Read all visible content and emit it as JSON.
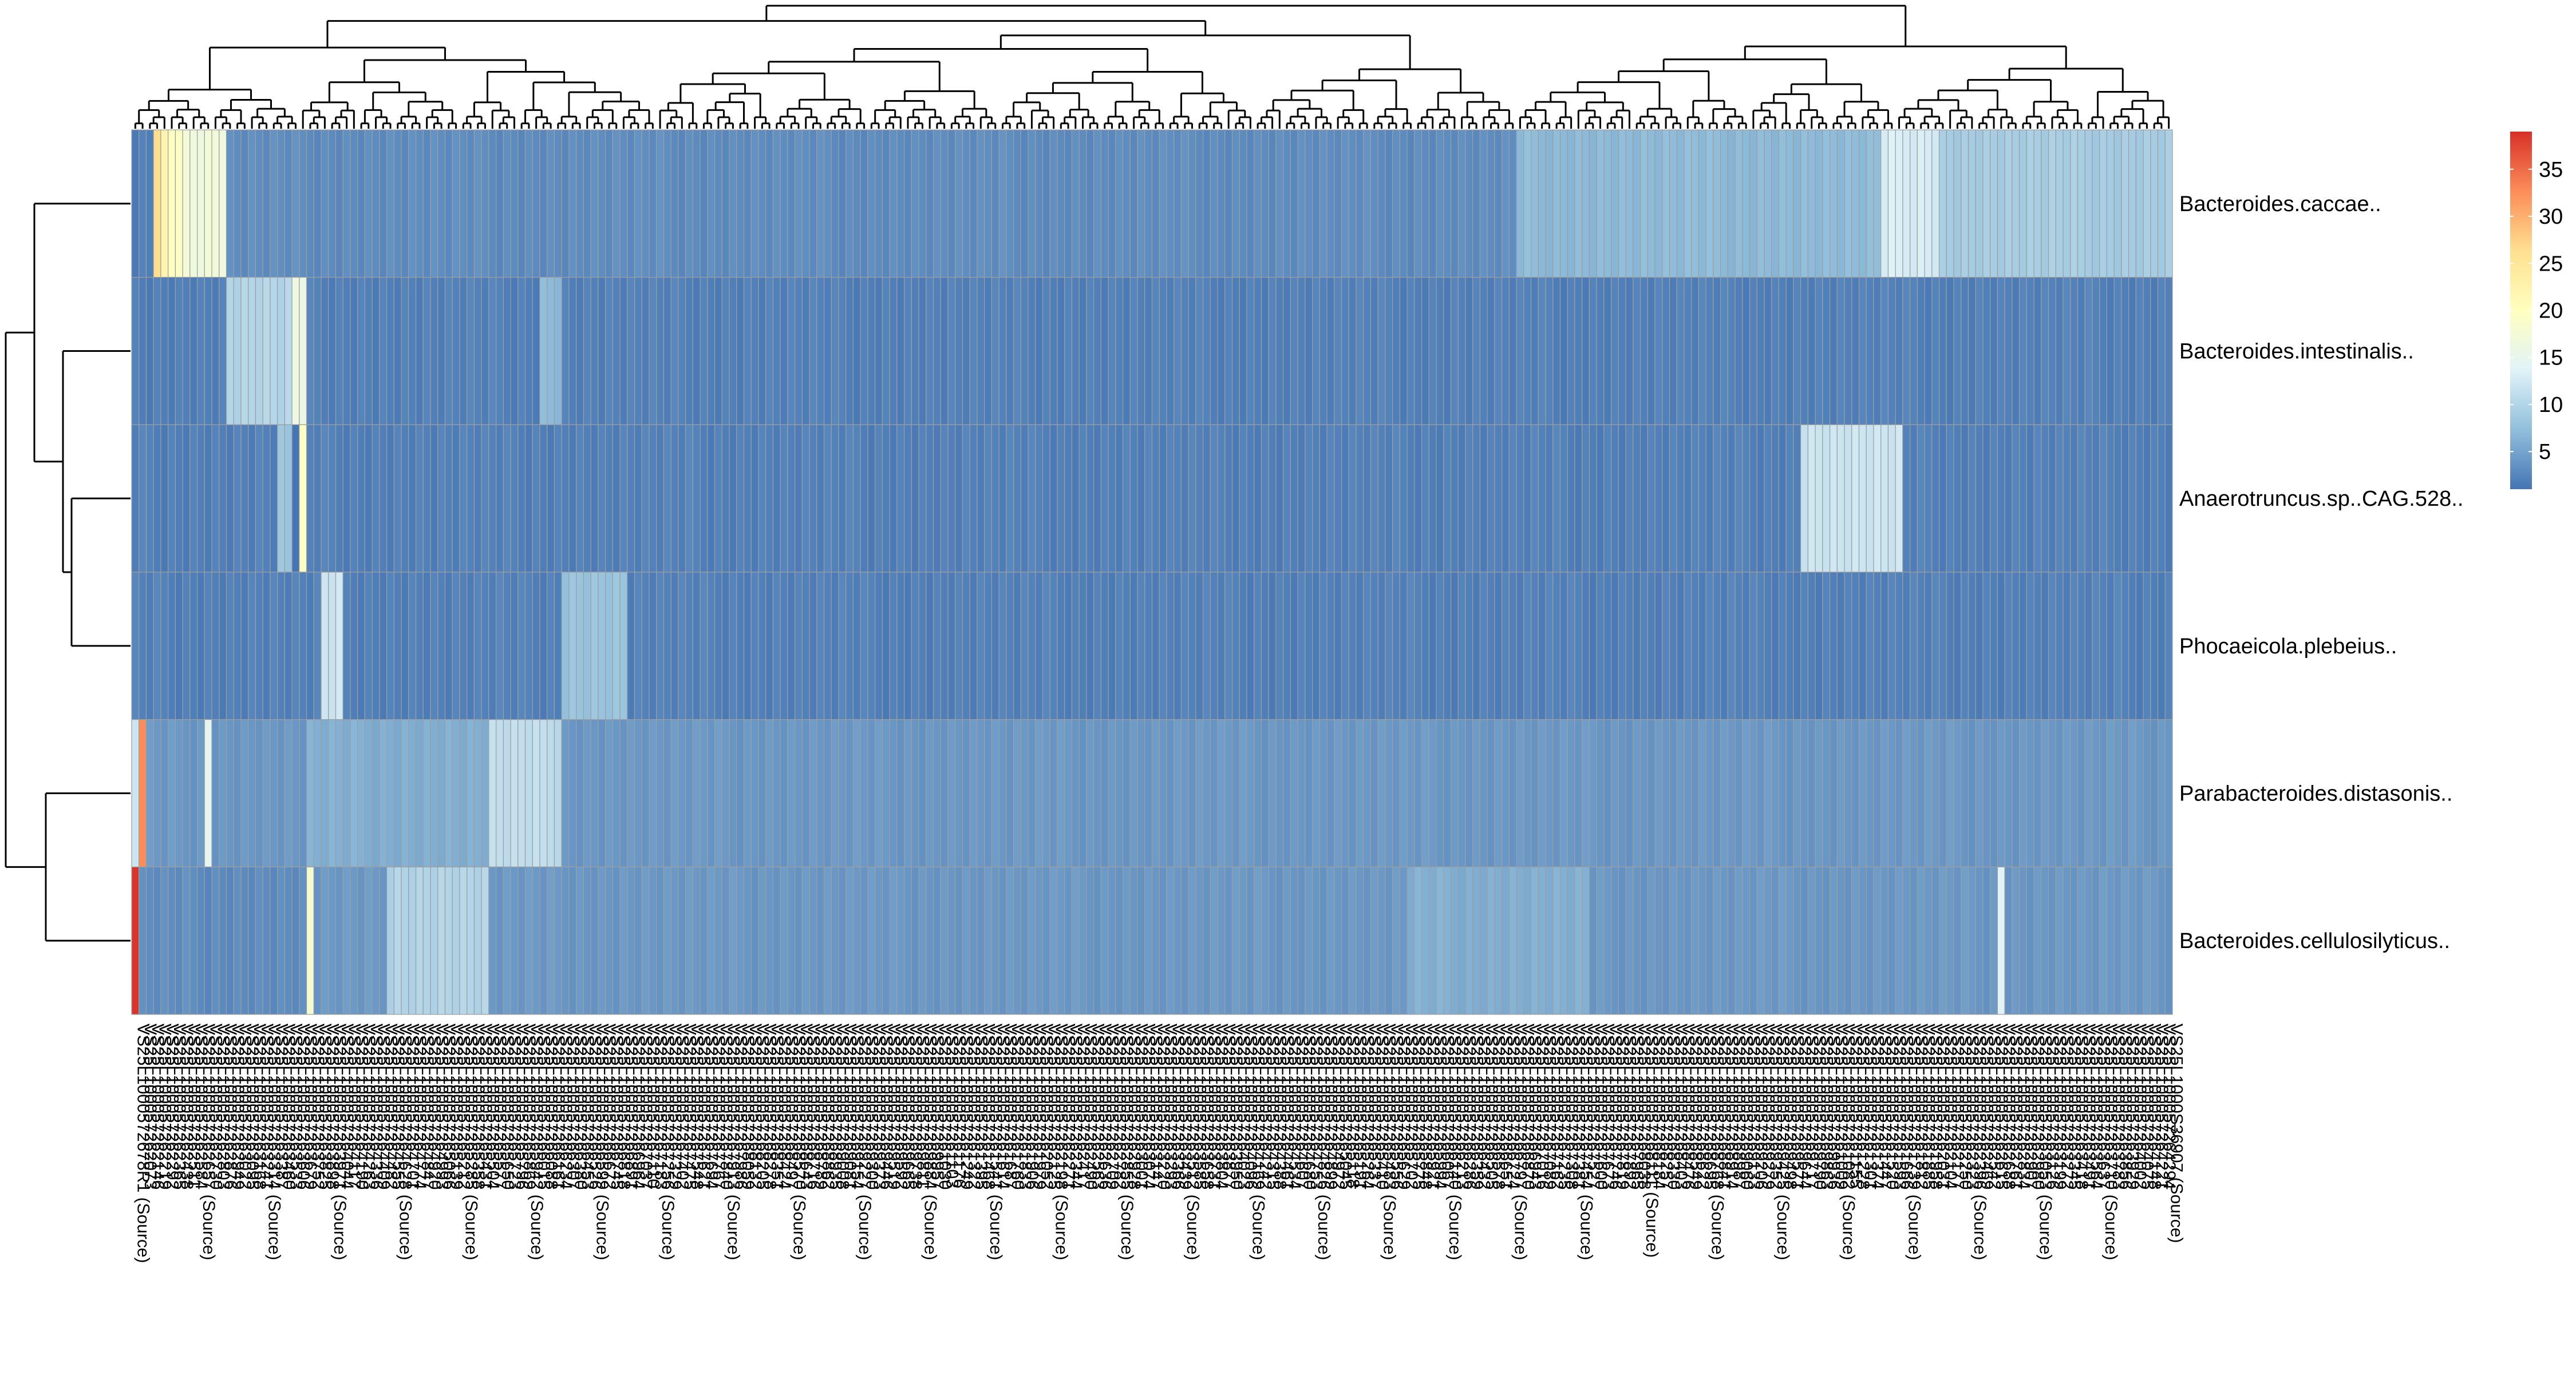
{
  "chart_data": {
    "type": "heatmap",
    "rows": [
      "Bacteroides.caccae..",
      "Bacteroides.intestinalis..",
      "Anaerotruncus.sp..CAG.528..",
      "Phocaeicola.plebeius..",
      "Parabacteroides.distasonis..",
      "Bacteroides.cellulosilyticus.."
    ],
    "n_columns": 280,
    "column_label_first": "VS25L1000572678R1 (Source)",
    "column_label_last": "VS25L1000S36907 (Source)",
    "column_label_fragment": "VS25L10005726",
    "column_label_suffix": "(Source)",
    "row_dendrogram": "((Bacteroides.caccae.., (Bacteroides.intestinalis.., (Anaerotruncus.sp..CAG.528.., Phocaeicola.plebeius..))), (Parabacteroides.distasonis.., Bacteroides.cellulosilyticus..))",
    "column_dendrogram": "hierarchical clustering of all 280 columns",
    "color_scale": {
      "min": 1,
      "max": 39,
      "ticks": [
        5,
        10,
        15,
        20,
        25,
        30,
        35
      ],
      "colors": [
        "#4575b4",
        "#91bfdb",
        "#e0f3f8",
        "#ffffbf",
        "#fee090",
        "#fc8d59",
        "#d73027"
      ]
    },
    "cell_border_color": "#9e9e9e",
    "values_by_column_range": [
      {
        "row": "Bacteroides.caccae..",
        "columns": [
          0,
          2
        ],
        "value": 2
      },
      {
        "row": "Bacteroides.caccae..",
        "columns": [
          3,
          3
        ],
        "value": 27
      },
      {
        "row": "Bacteroides.caccae..",
        "columns": [
          4,
          4
        ],
        "value": 22
      },
      {
        "row": "Bacteroides.caccae..",
        "columns": [
          5,
          6
        ],
        "value": 20
      },
      {
        "row": "Bacteroides.caccae..",
        "columns": [
          7,
          12
        ],
        "value": 17
      },
      {
        "row": "Bacteroides.caccae..",
        "columns": [
          13,
          189
        ],
        "value": 3
      },
      {
        "row": "Bacteroides.caccae..",
        "columns": [
          190,
          239
        ],
        "value": 7
      },
      {
        "row": "Bacteroides.caccae..",
        "columns": [
          240,
          247
        ],
        "value": 13
      },
      {
        "row": "Bacteroides.caccae..",
        "columns": [
          248,
          279
        ],
        "value": 9
      },
      {
        "row": "Bacteroides.intestinalis..",
        "columns": [
          0,
          12
        ],
        "value": 2
      },
      {
        "row": "Bacteroides.intestinalis..",
        "columns": [
          13,
          21
        ],
        "value": 10
      },
      {
        "row": "Bacteroides.intestinalis..",
        "columns": [
          22,
          23
        ],
        "value": 16
      },
      {
        "row": "Bacteroides.intestinalis..",
        "columns": [
          24,
          55
        ],
        "value": 2
      },
      {
        "row": "Bacteroides.intestinalis..",
        "columns": [
          56,
          58
        ],
        "value": 7
      },
      {
        "row": "Bacteroides.intestinalis..",
        "columns": [
          59,
          279
        ],
        "value": 2
      },
      {
        "row": "Anaerotruncus.sp..CAG.528..",
        "columns": [
          0,
          19
        ],
        "value": 2
      },
      {
        "row": "Anaerotruncus.sp..CAG.528..",
        "columns": [
          20,
          21
        ],
        "value": 8
      },
      {
        "row": "Anaerotruncus.sp..CAG.528..",
        "columns": [
          23,
          23
        ],
        "value": 19
      },
      {
        "row": "Anaerotruncus.sp..CAG.528..",
        "columns": [
          24,
          228
        ],
        "value": 2
      },
      {
        "row": "Anaerotruncus.sp..CAG.528..",
        "columns": [
          229,
          242
        ],
        "value": 12
      },
      {
        "row": "Anaerotruncus.sp..CAG.528..",
        "columns": [
          243,
          279
        ],
        "value": 2
      },
      {
        "row": "Phocaeicola.plebeius..",
        "columns": [
          0,
          25
        ],
        "value": 2
      },
      {
        "row": "Phocaeicola.plebeius..",
        "columns": [
          26,
          28
        ],
        "value": 12
      },
      {
        "row": "Phocaeicola.plebeius..",
        "columns": [
          29,
          58
        ],
        "value": 2
      },
      {
        "row": "Phocaeicola.plebeius..",
        "columns": [
          59,
          67
        ],
        "value": 8
      },
      {
        "row": "Phocaeicola.plebeius..",
        "columns": [
          68,
          279
        ],
        "value": 2
      },
      {
        "row": "Parabacteroides.distasonis..",
        "columns": [
          0,
          0
        ],
        "value": 12
      },
      {
        "row": "Parabacteroides.distasonis..",
        "columns": [
          1,
          1
        ],
        "value": 33
      },
      {
        "row": "Parabacteroides.distasonis..",
        "columns": [
          2,
          9
        ],
        "value": 4
      },
      {
        "row": "Parabacteroides.distasonis..",
        "columns": [
          10,
          10
        ],
        "value": 15
      },
      {
        "row": "Parabacteroides.distasonis..",
        "columns": [
          11,
          23
        ],
        "value": 4
      },
      {
        "row": "Parabacteroides.distasonis..",
        "columns": [
          24,
          48
        ],
        "value": 6
      },
      {
        "row": "Parabacteroides.distasonis..",
        "columns": [
          49,
          58
        ],
        "value": 11
      },
      {
        "row": "Parabacteroides.distasonis..",
        "columns": [
          59,
          279
        ],
        "value": 4
      },
      {
        "row": "Bacteroides.cellulosilyticus..",
        "columns": [
          0,
          0
        ],
        "value": 39
      },
      {
        "row": "Bacteroides.cellulosilyticus..",
        "columns": [
          1,
          23
        ],
        "value": 3
      },
      {
        "row": "Bacteroides.cellulosilyticus..",
        "columns": [
          24,
          24
        ],
        "value": 18
      },
      {
        "row": "Bacteroides.cellulosilyticus..",
        "columns": [
          25,
          34
        ],
        "value": 4
      },
      {
        "row": "Bacteroides.cellulosilyticus..",
        "columns": [
          35,
          48
        ],
        "value": 10
      },
      {
        "row": "Bacteroides.cellulosilyticus..",
        "columns": [
          49,
          174
        ],
        "value": 4
      },
      {
        "row": "Bacteroides.cellulosilyticus..",
        "columns": [
          175,
          199
        ],
        "value": 6
      },
      {
        "row": "Bacteroides.cellulosilyticus..",
        "columns": [
          200,
          255
        ],
        "value": 4
      },
      {
        "row": "Bacteroides.cellulosilyticus..",
        "columns": [
          256,
          256
        ],
        "value": 14
      },
      {
        "row": "Bacteroides.cellulosilyticus..",
        "columns": [
          257,
          279
        ],
        "value": 4
      }
    ]
  }
}
